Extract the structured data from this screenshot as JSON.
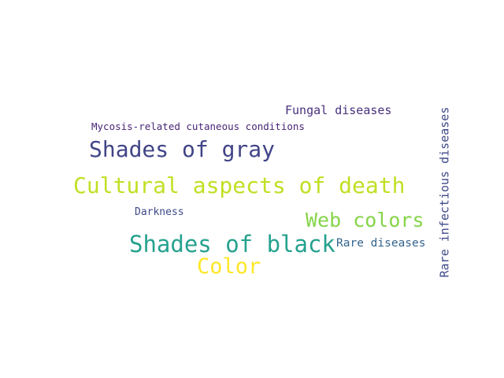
{
  "words": [
    {
      "text": "Fungal diseases",
      "color": "#472f7d"
    },
    {
      "text": "Mycosis-related cutaneous conditions",
      "color": "#482475"
    },
    {
      "text": "Shades of gray",
      "color": "#414487"
    },
    {
      "text": "Cultural aspects of death",
      "color": "#c2df23"
    },
    {
      "text": "Darkness",
      "color": "#3e4a89"
    },
    {
      "text": "Web colors",
      "color": "#86d549"
    },
    {
      "text": "Shades of black",
      "color": "#25a18e"
    },
    {
      "text": "Rare diseases",
      "color": "#33638d"
    },
    {
      "text": "Color",
      "color": "#fde725"
    },
    {
      "text": "Rare infectious diseases",
      "color": "#3e4989"
    }
  ]
}
